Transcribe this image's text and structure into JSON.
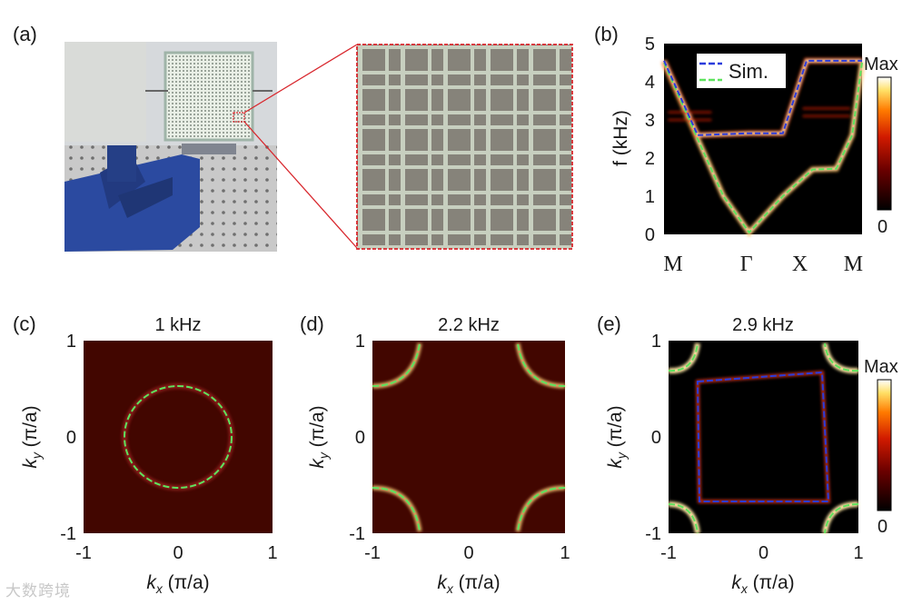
{
  "panels": {
    "a": {
      "letter": "(a)"
    },
    "b": {
      "letter": "(b)",
      "ylabel": "f (kHz)",
      "yticks": [
        "0",
        "1",
        "2",
        "3",
        "4",
        "5"
      ],
      "xticks": [
        "M",
        "Γ",
        "X",
        "M"
      ],
      "legend": "Sim.",
      "cb_max": "Max",
      "cb_min": "0"
    },
    "c": {
      "letter": "(c)",
      "title": "1 kHz"
    },
    "d": {
      "letter": "(d)",
      "title": "2.2 kHz"
    },
    "e": {
      "letter": "(e)",
      "title": "2.9 kHz",
      "cb_max": "Max",
      "cb_min": "0"
    }
  },
  "axes": {
    "ticks": [
      "-1",
      "0",
      "1"
    ],
    "ky_label_k": "k",
    "ky_label_sub": "y",
    "ky_label_rest": " (π/a)",
    "kx_label_k": "k",
    "kx_label_sub": "x",
    "kx_label_rest": " (π/a)"
  },
  "watermark": "大数跨境",
  "colors": {
    "dark_red": "#4a0a00",
    "black": "#000000",
    "sim_green": "#5ee35e",
    "sim_blue": "#2b3cdc"
  },
  "chart_data": [
    {
      "type": "line",
      "panel": "b",
      "categories": [
        "M",
        "Γ",
        "X",
        "M"
      ],
      "ylabel": "f (kHz)",
      "ylim": [
        0,
        5
      ],
      "series": [
        {
          "name": "Sim.",
          "x": [
            0,
            0.17,
            0.3,
            0.43,
            0.6,
            0.75,
            0.87,
            0.95,
            1
          ],
          "y": [
            4.5,
            2.5,
            1.0,
            0.05,
            1.0,
            1.7,
            1.72,
            2.6,
            4.5
          ]
        },
        {
          "name": "Sim.",
          "x": [
            0,
            0.17,
            0.43,
            0.6,
            0.72,
            0.9,
            1
          ],
          "y": [
            4.55,
            2.6,
            2.65,
            2.65,
            4.55,
            4.55,
            4.55
          ]
        }
      ]
    }
  ]
}
